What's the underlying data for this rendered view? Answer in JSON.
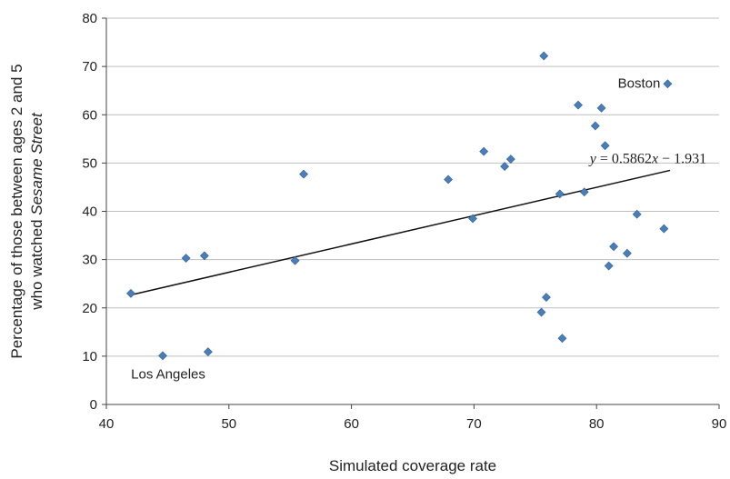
{
  "chart_data": {
    "type": "scatter",
    "title": "",
    "xlabel": "Simulated coverage rate",
    "ylabel_line1": "Percentage of those between ages 2 and 5",
    "ylabel_line2_prefix": "who watched ",
    "ylabel_line2_emph": "Sesame Street",
    "xlim": [
      40,
      90
    ],
    "ylim": [
      0,
      80
    ],
    "xticks": [
      40,
      50,
      60,
      70,
      80,
      90
    ],
    "yticks": [
      0,
      10,
      20,
      30,
      40,
      50,
      60,
      70,
      80
    ],
    "grid": "horizontal",
    "marker_color": "#4A7EBB",
    "trendline": {
      "slope": 0.5862,
      "intercept": -1.931,
      "x_range": [
        42,
        86
      ],
      "eq_y": "y",
      "eq_mid": " = 0.5862",
      "eq_x": "x",
      "eq_end": " − 1.931"
    },
    "points": [
      {
        "x": 42.0,
        "y": 23.0
      },
      {
        "x": 44.6,
        "y": 10.1
      },
      {
        "x": 46.5,
        "y": 30.3
      },
      {
        "x": 48.0,
        "y": 30.8
      },
      {
        "x": 48.3,
        "y": 10.9
      },
      {
        "x": 55.4,
        "y": 29.8
      },
      {
        "x": 56.1,
        "y": 47.7
      },
      {
        "x": 67.9,
        "y": 46.6
      },
      {
        "x": 69.9,
        "y": 38.5
      },
      {
        "x": 70.8,
        "y": 52.4
      },
      {
        "x": 72.5,
        "y": 49.3
      },
      {
        "x": 73.0,
        "y": 50.8
      },
      {
        "x": 75.5,
        "y": 19.1
      },
      {
        "x": 75.7,
        "y": 72.2
      },
      {
        "x": 75.9,
        "y": 22.2
      },
      {
        "x": 77.0,
        "y": 43.6
      },
      {
        "x": 77.2,
        "y": 13.7
      },
      {
        "x": 78.5,
        "y": 62.0
      },
      {
        "x": 79.0,
        "y": 44.0
      },
      {
        "x": 79.9,
        "y": 57.7
      },
      {
        "x": 80.4,
        "y": 61.4
      },
      {
        "x": 80.7,
        "y": 53.6
      },
      {
        "x": 81.0,
        "y": 28.7
      },
      {
        "x": 81.4,
        "y": 32.7
      },
      {
        "x": 82.5,
        "y": 31.3
      },
      {
        "x": 83.3,
        "y": 39.4
      },
      {
        "x": 85.5,
        "y": 36.4
      },
      {
        "x": 85.8,
        "y": 66.4
      }
    ],
    "annotations": [
      {
        "text": "Boston",
        "x": 85.8,
        "y": 66.4
      },
      {
        "text": "Los Angeles",
        "x": 44.6,
        "y": 10.1
      }
    ]
  }
}
